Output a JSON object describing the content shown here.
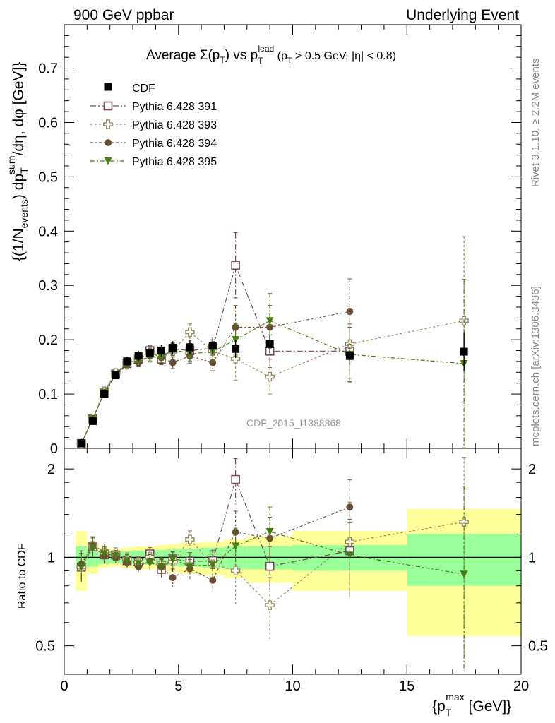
{
  "header": {
    "left": "900 GeV ppbar",
    "right": "Underlying Event"
  },
  "title": {
    "prefix": "Average ",
    "sigma": "Σ(p",
    "sigma_sub": "T",
    "sigma_close": ") vs p",
    "lead_sup": "lead",
    "lead_sub": "T",
    "cut_open": " (p",
    "cut_sub": "T",
    "cut_text": " > 0.5 GeV, |η| < 0.8)"
  },
  "side_labels": {
    "rivet": "Rivet 3.1.10, ≥ 2.2M events",
    "mcplots": "mcplots.cern.ch [arXiv:1306.3436]"
  },
  "watermark": "CDF_2015_I1388868",
  "ylabel_main": {
    "a": "{(1/N",
    "a_sub": "events",
    "b": ") dp",
    "b_sup": "sum",
    "b_sub": "T",
    "c": "/dη, dφ [GeV]}"
  },
  "ylabel_ratio": "Ratio to CDF",
  "xlabel": {
    "a": "{p",
    "sup": "max",
    "sub": "T",
    "b": " [GeV]}"
  },
  "colors": {
    "cdf": "#000000",
    "p391": "#7b4a5c",
    "p393": "#9a8a5e",
    "p394": "#6b4f35",
    "p395": "#4a7c16",
    "band_green": "#99ff99",
    "band_yellow": "#ffff99"
  },
  "chart_data": {
    "type": "scatter",
    "x_range": [
      0,
      20
    ],
    "main_ylim": [
      0,
      0.78
    ],
    "ratio_ylim": [
      0.4,
      2.35
    ],
    "ratio_log": true,
    "x_ticks": [
      0,
      5,
      10,
      15,
      20
    ],
    "main_y_ticks": [
      0,
      0.1,
      0.2,
      0.3,
      0.4,
      0.5,
      0.6,
      0.7
    ],
    "main_y_tick_labels": [
      "0",
      "0.1",
      "0.2",
      "0.3",
      "0.4",
      "0.5",
      "0.6",
      "0.7"
    ],
    "ratio_y_ticks": [
      0.5,
      1,
      2
    ],
    "ratio_y_tick_labels": [
      "0.5",
      "1",
      "2"
    ],
    "x": [
      0.75,
      1.25,
      1.75,
      2.25,
      2.75,
      3.25,
      3.75,
      4.25,
      4.75,
      5.5,
      6.5,
      7.5,
      9.0,
      12.5,
      17.5
    ],
    "bins": [
      [
        0.5,
        1.0
      ],
      [
        1.0,
        1.5
      ],
      [
        1.5,
        2.0
      ],
      [
        2.0,
        2.5
      ],
      [
        2.5,
        3.0
      ],
      [
        3.0,
        3.5
      ],
      [
        3.5,
        4.0
      ],
      [
        4.0,
        4.5
      ],
      [
        4.5,
        5.0
      ],
      [
        5.0,
        6.0
      ],
      [
        6.0,
        7.0
      ],
      [
        7.0,
        8.0
      ],
      [
        8.0,
        10.0
      ],
      [
        10.0,
        15.0
      ],
      [
        15.0,
        20.0
      ]
    ],
    "cdf": {
      "name": "CDF",
      "values": [
        0.0095,
        0.0502,
        0.1,
        0.1345,
        0.1602,
        0.1703,
        0.1752,
        0.1802,
        0.1852,
        0.186,
        0.189,
        0.183,
        0.192,
        0.17,
        0.178
      ],
      "band_green": [
        0.09,
        0.07,
        0.05,
        0.045,
        0.05,
        0.055,
        0.055,
        0.06,
        0.065,
        0.07,
        0.08,
        0.09,
        0.09,
        0.1,
        0.2
      ],
      "band_yellow": [
        0.23,
        0.12,
        0.08,
        0.07,
        0.08,
        0.09,
        0.09,
        0.1,
        0.11,
        0.12,
        0.13,
        0.15,
        0.18,
        0.23,
        0.46
      ]
    },
    "series": [
      {
        "name": "Pythia 6.428 391",
        "marker": "open-square",
        "color_key": "p391",
        "dash": "8,3,2,3",
        "values": [
          0.0088,
          0.0545,
          0.102,
          0.137,
          0.156,
          0.164,
          0.18,
          0.164,
          0.183,
          0.18,
          0.184,
          0.337,
          0.179,
          0.179,
          null
        ],
        "errors": [
          0.001,
          0.004,
          0.006,
          0.006,
          0.008,
          0.008,
          0.009,
          0.01,
          0.011,
          0.013,
          0.016,
          0.06,
          0.03,
          0.05,
          0
        ]
      },
      {
        "name": "Pythia 6.428 393",
        "marker": "open-cross",
        "color_key": "p393",
        "dash": "3,3",
        "values": [
          0.0088,
          0.055,
          0.105,
          0.139,
          0.158,
          0.164,
          0.176,
          0.172,
          0.179,
          0.214,
          0.179,
          0.165,
          0.132,
          0.192,
          0.235
        ],
        "errors": [
          0.001,
          0.004,
          0.006,
          0.006,
          0.008,
          0.008,
          0.009,
          0.01,
          0.011,
          0.015,
          0.018,
          0.04,
          0.032,
          0.07,
          0.155
        ]
      },
      {
        "name": "Pythia 6.428 394",
        "marker": "filled-circle",
        "color_key": "p394",
        "dash": "4,3,2,3",
        "values": [
          0.009,
          0.055,
          0.101,
          0.134,
          0.154,
          0.158,
          0.17,
          0.167,
          0.158,
          0.17,
          0.158,
          0.223,
          0.223,
          0.252,
          null
        ],
        "errors": [
          0.001,
          0.004,
          0.006,
          0.006,
          0.008,
          0.008,
          0.009,
          0.01,
          0.011,
          0.013,
          0.015,
          0.04,
          0.04,
          0.06,
          0
        ]
      },
      {
        "name": "Pythia 6.428 395",
        "marker": "filled-triangle-down",
        "color_key": "p395",
        "dash": "6,3,2,3",
        "values": [
          0.0088,
          0.054,
          0.103,
          0.136,
          0.156,
          0.162,
          0.168,
          0.168,
          0.182,
          0.174,
          0.178,
          0.2,
          0.235,
          0.173,
          0.156
        ],
        "errors": [
          0.001,
          0.004,
          0.006,
          0.006,
          0.008,
          0.008,
          0.009,
          0.01,
          0.011,
          0.013,
          0.016,
          0.03,
          0.05,
          0.05,
          0.155
        ]
      }
    ],
    "legend_placement": "top-left"
  }
}
